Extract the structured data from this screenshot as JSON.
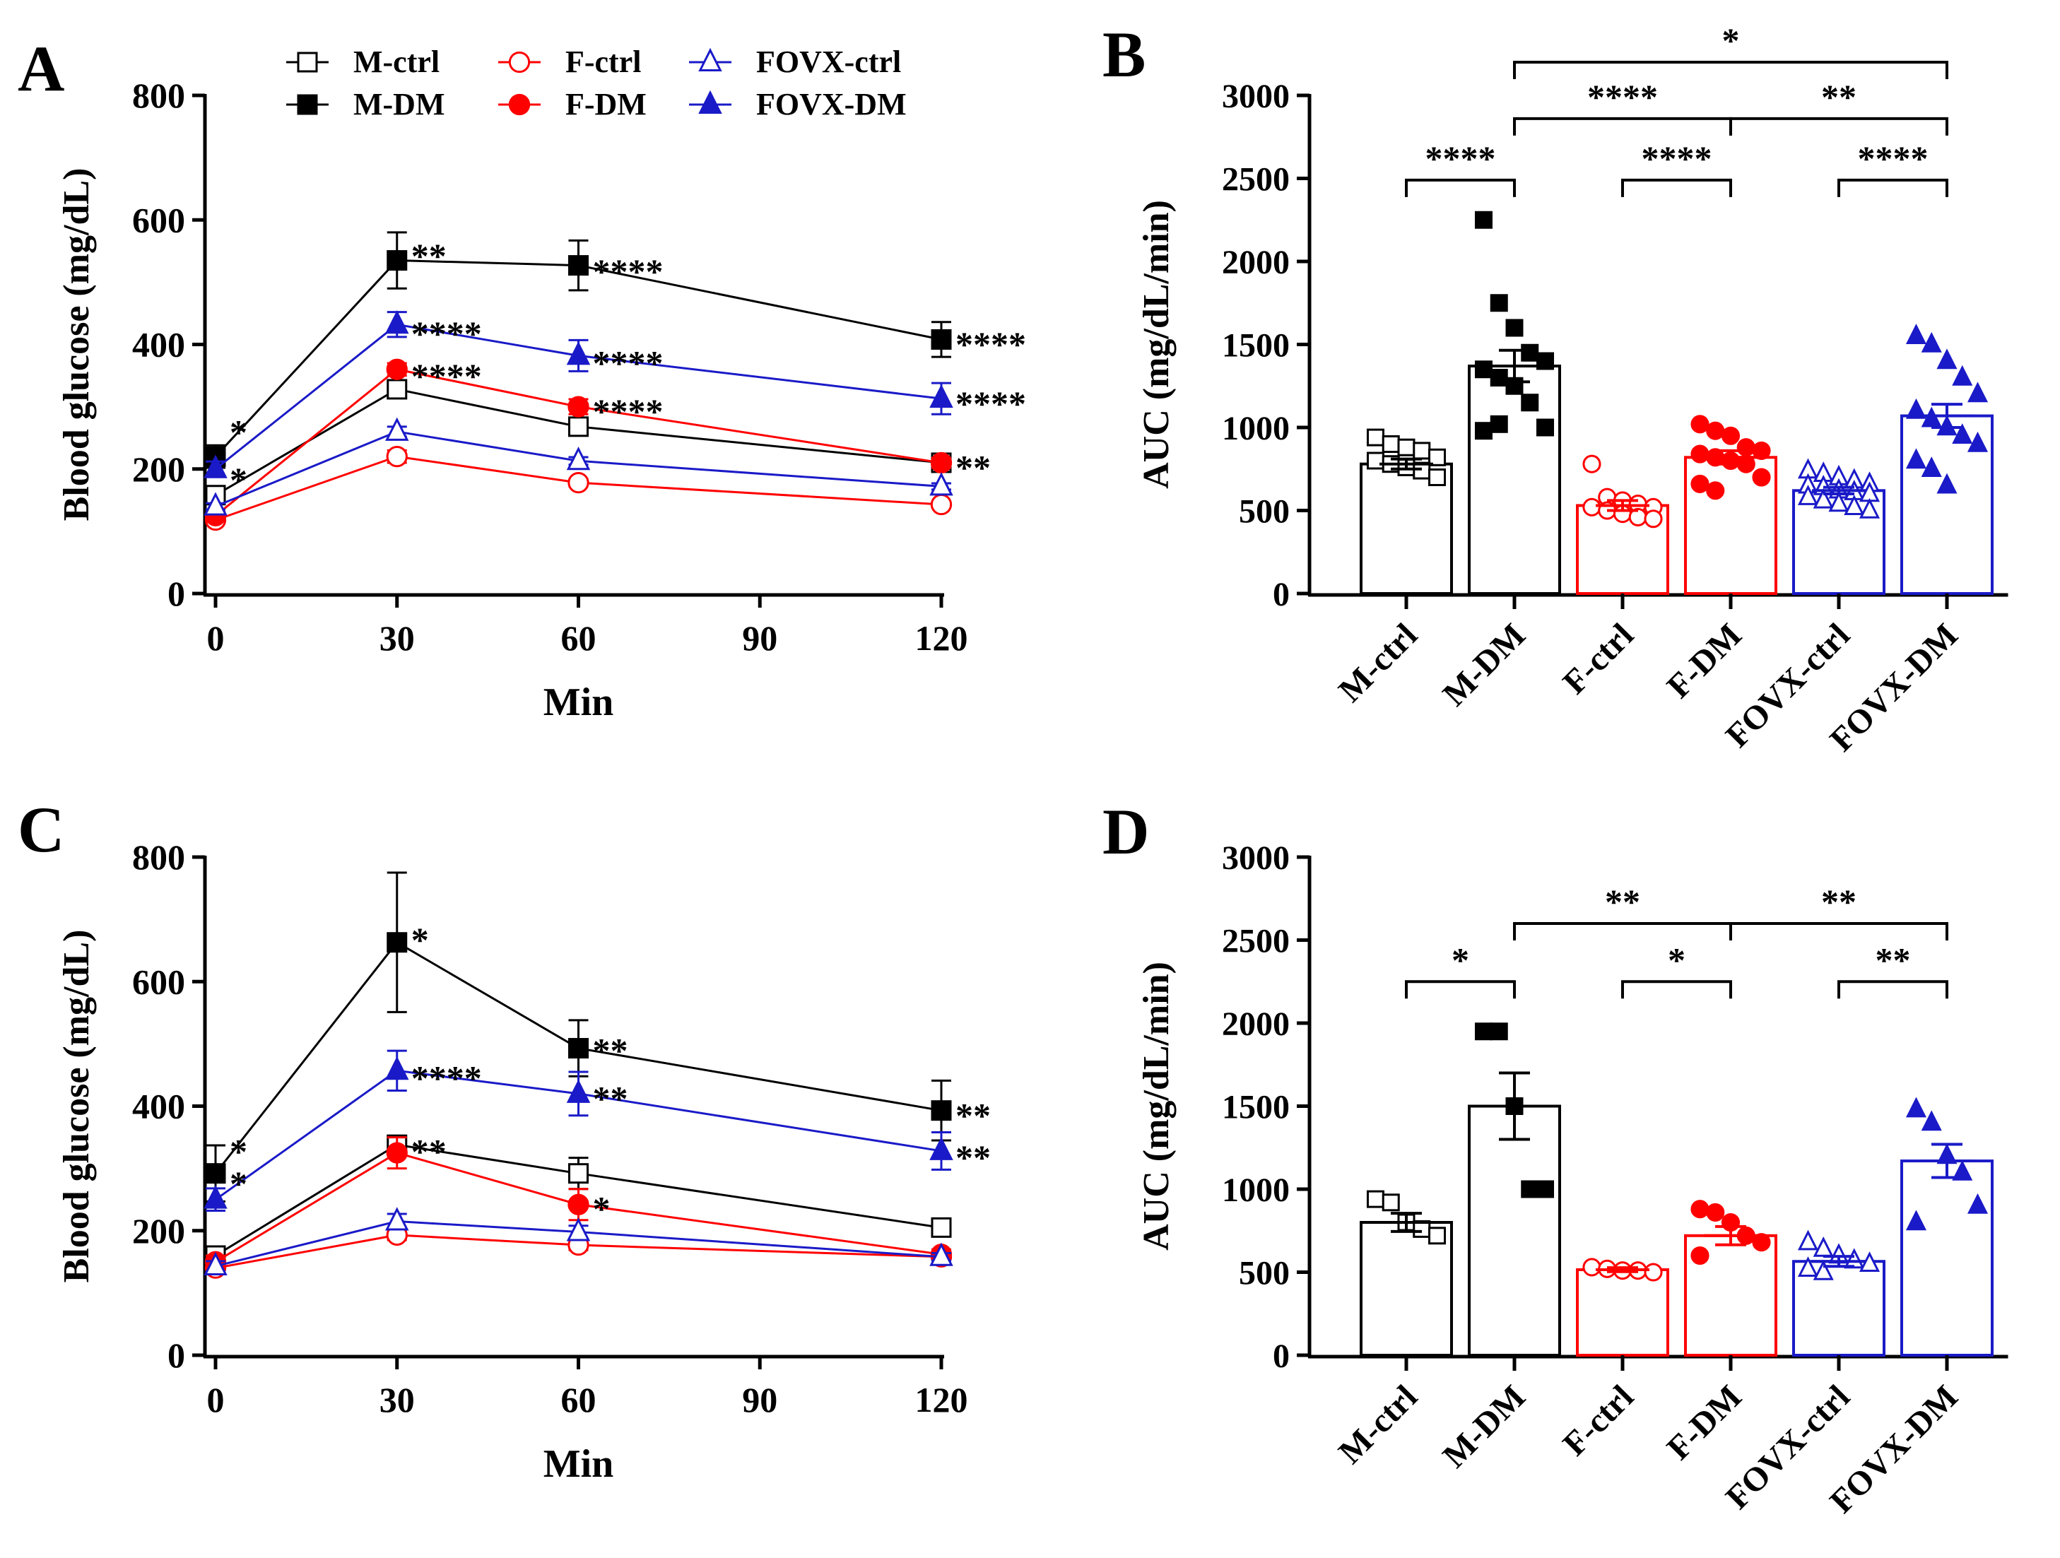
{
  "colors": {
    "M": "#000000",
    "F": "#ff0000",
    "FOVX": "#1a1ac8"
  },
  "legend": [
    {
      "label": "M-ctrl",
      "color": "#000000",
      "marker": "square",
      "filled": false
    },
    {
      "label": "M-DM",
      "color": "#000000",
      "marker": "square",
      "filled": true
    },
    {
      "label": "F-ctrl",
      "color": "#ff0000",
      "marker": "circle",
      "filled": false
    },
    {
      "label": "F-DM",
      "color": "#ff0000",
      "marker": "circle",
      "filled": true
    },
    {
      "label": "FOVX-ctrl",
      "color": "#1a1ac8",
      "marker": "triangle",
      "filled": false
    },
    {
      "label": "FOVX-DM",
      "color": "#1a1ac8",
      "marker": "triangle",
      "filled": true
    }
  ],
  "chart_data": [
    {
      "panel": "A",
      "type": "line",
      "xlabel": "Min",
      "ylabel": "Blood glucose (mg/dL)",
      "x": [
        0,
        30,
        60,
        120
      ],
      "xticks": [
        0,
        30,
        60,
        90,
        120
      ],
      "xlim": [
        0,
        120
      ],
      "ylim": [
        0,
        800
      ],
      "yticks": [
        0,
        200,
        400,
        600,
        800
      ],
      "series": [
        {
          "name": "M-ctrl",
          "color": "#000000",
          "marker": "square",
          "filled": false,
          "values": [
            158,
            328,
            268,
            210
          ],
          "errors": [
            8,
            12,
            10,
            8
          ]
        },
        {
          "name": "M-DM",
          "color": "#000000",
          "marker": "square",
          "filled": true,
          "values": [
            220,
            535,
            527,
            408
          ],
          "errors": [
            18,
            45,
            40,
            28
          ]
        },
        {
          "name": "F-ctrl",
          "color": "#ff0000",
          "marker": "circle",
          "filled": false,
          "values": [
            118,
            220,
            178,
            143
          ],
          "errors": [
            5,
            10,
            6,
            5
          ]
        },
        {
          "name": "F-DM",
          "color": "#ff0000",
          "marker": "circle",
          "filled": true,
          "values": [
            125,
            360,
            300,
            210
          ],
          "errors": [
            6,
            10,
            12,
            8
          ]
        },
        {
          "name": "FOVX-ctrl",
          "color": "#1a1ac8",
          "marker": "triangle",
          "filled": false,
          "values": [
            140,
            260,
            213,
            172
          ],
          "errors": [
            5,
            8,
            6,
            5
          ]
        },
        {
          "name": "FOVX-DM",
          "color": "#1a1ac8",
          "marker": "triangle",
          "filled": true,
          "values": [
            200,
            432,
            382,
            313
          ],
          "errors": [
            12,
            20,
            25,
            25
          ]
        }
      ],
      "annotations": [
        {
          "text": "*",
          "x": 0,
          "y": 272
        },
        {
          "text": "*",
          "x": 0,
          "y": 195
        },
        {
          "text": "**",
          "x": 30,
          "y": 555
        },
        {
          "text": "****",
          "x": 30,
          "y": 430
        },
        {
          "text": "****",
          "x": 30,
          "y": 362
        },
        {
          "text": "****",
          "x": 60,
          "y": 530
        },
        {
          "text": "****",
          "x": 60,
          "y": 383
        },
        {
          "text": "****",
          "x": 60,
          "y": 305
        },
        {
          "text": "****",
          "x": 120,
          "y": 413
        },
        {
          "text": "****",
          "x": 120,
          "y": 318
        },
        {
          "text": "**",
          "x": 120,
          "y": 215
        }
      ]
    },
    {
      "panel": "B",
      "type": "bar",
      "ylabel": "AUC (mg/dL/min)",
      "categories": [
        "M-ctrl",
        "M-DM",
        "F-ctrl",
        "F-DM",
        "FOVX-ctrl",
        "FOVX-DM"
      ],
      "colors": [
        "#000000",
        "#000000",
        "#ff0000",
        "#ff0000",
        "#1a1ac8",
        "#1a1ac8"
      ],
      "markers": [
        "square",
        "square",
        "circle",
        "circle",
        "triangle",
        "triangle"
      ],
      "filled": [
        false,
        true,
        false,
        true,
        false,
        true
      ],
      "values": [
        780,
        1370,
        530,
        820,
        620,
        1070
      ],
      "errors": [
        30,
        95,
        30,
        40,
        20,
        70
      ],
      "points": [
        [
          940,
          900,
          880,
          860,
          820,
          800,
          780,
          760,
          740,
          700
        ],
        [
          2250,
          1750,
          1600,
          1450,
          1400,
          1350,
          1300,
          1250,
          1150,
          1000,
          980,
          1020
        ],
        [
          780,
          580,
          560,
          540,
          520,
          520,
          500,
          480,
          460,
          450
        ],
        [
          1020,
          980,
          950,
          880,
          860,
          840,
          820,
          800,
          780,
          700,
          660,
          620
        ],
        [
          740,
          720,
          700,
          680,
          660,
          650,
          640,
          620,
          610,
          600,
          580,
          560,
          540,
          520,
          500
        ],
        [
          1550,
          1500,
          1400,
          1300,
          1200,
          1100,
          1050,
          1000,
          950,
          900,
          800,
          750,
          650
        ]
      ],
      "ylim": [
        0,
        3000
      ],
      "yticks": [
        0,
        500,
        1000,
        1500,
        2000,
        2500,
        3000
      ],
      "brackets": [
        {
          "from": 0,
          "to": 1,
          "y": 2490,
          "label": "****"
        },
        {
          "from": 2,
          "to": 3,
          "y": 2490,
          "label": "****"
        },
        {
          "from": 4,
          "to": 5,
          "y": 2490,
          "label": "****"
        },
        {
          "from": 1,
          "to": 3,
          "y": 2860,
          "label": "****"
        },
        {
          "from": 3,
          "to": 5,
          "y": 2860,
          "label": "**"
        },
        {
          "from": 1,
          "to": 5,
          "y": 3200,
          "label": "*"
        }
      ]
    },
    {
      "panel": "C",
      "type": "line",
      "xlabel": "Min",
      "ylabel": "Blood glucose (mg/dL)",
      "x": [
        0,
        30,
        60,
        120
      ],
      "xticks": [
        0,
        30,
        60,
        90,
        120
      ],
      "xlim": [
        0,
        120
      ],
      "ylim": [
        0,
        800
      ],
      "yticks": [
        0,
        200,
        400,
        600,
        800
      ],
      "series": [
        {
          "name": "M-ctrl",
          "color": "#000000",
          "marker": "square",
          "filled": false,
          "values": [
            160,
            338,
            292,
            205
          ],
          "errors": [
            8,
            12,
            25,
            8
          ]
        },
        {
          "name": "M-DM",
          "color": "#000000",
          "marker": "square",
          "filled": true,
          "values": [
            292,
            663,
            493,
            393
          ],
          "errors": [
            45,
            112,
            45,
            48
          ]
        },
        {
          "name": "F-ctrl",
          "color": "#ff0000",
          "marker": "circle",
          "filled": false,
          "values": [
            140,
            193,
            177,
            158
          ],
          "errors": [
            5,
            8,
            8,
            5
          ]
        },
        {
          "name": "F-DM",
          "color": "#ff0000",
          "marker": "circle",
          "filled": true,
          "values": [
            150,
            325,
            242,
            162
          ],
          "errors": [
            10,
            25,
            25,
            8
          ]
        },
        {
          "name": "FOVX-ctrl",
          "color": "#1a1ac8",
          "marker": "triangle",
          "filled": false,
          "values": [
            143,
            215,
            198,
            158
          ],
          "errors": [
            8,
            12,
            10,
            6
          ]
        },
        {
          "name": "FOVX-DM",
          "color": "#1a1ac8",
          "marker": "triangle",
          "filled": true,
          "values": [
            250,
            457,
            420,
            328
          ],
          "errors": [
            18,
            32,
            35,
            30
          ]
        }
      ],
      "annotations": [
        {
          "text": "*",
          "x": 0,
          "y": 340
        },
        {
          "text": "*",
          "x": 0,
          "y": 288
        },
        {
          "text": "*",
          "x": 30,
          "y": 680
        },
        {
          "text": "****",
          "x": 30,
          "y": 458
        },
        {
          "text": "**",
          "x": 30,
          "y": 340
        },
        {
          "text": "**",
          "x": 60,
          "y": 502
        },
        {
          "text": "**",
          "x": 60,
          "y": 425
        },
        {
          "text": "*",
          "x": 60,
          "y": 248
        },
        {
          "text": "**",
          "x": 120,
          "y": 398
        },
        {
          "text": "**",
          "x": 120,
          "y": 330
        }
      ]
    },
    {
      "panel": "D",
      "type": "bar",
      "ylabel": "AUC (mg/dL/min)",
      "categories": [
        "M-ctrl",
        "M-DM",
        "F-ctrl",
        "F-DM",
        "FOVX-ctrl",
        "FOVX-DM"
      ],
      "colors": [
        "#000000",
        "#000000",
        "#ff0000",
        "#ff0000",
        "#1a1ac8",
        "#1a1ac8"
      ],
      "markers": [
        "square",
        "square",
        "circle",
        "circle",
        "triangle",
        "triangle"
      ],
      "filled": [
        false,
        true,
        false,
        true,
        false,
        true
      ],
      "values": [
        800,
        1500,
        515,
        720,
        565,
        1170
      ],
      "errors": [
        55,
        200,
        12,
        55,
        30,
        100
      ],
      "points": [
        [
          940,
          920,
          800,
          760,
          720
        ],
        [
          1950,
          1950,
          1500,
          1000,
          1000
        ],
        [
          530,
          520,
          510,
          510,
          500
        ],
        [
          880,
          860,
          800,
          720,
          680,
          600
        ],
        [
          680,
          640,
          600,
          570,
          550,
          520,
          500
        ],
        [
          1480,
          1400,
          1200,
          1100,
          900,
          800
        ]
      ],
      "ylim": [
        0,
        3000
      ],
      "yticks": [
        0,
        500,
        1000,
        1500,
        2000,
        2500,
        3000
      ],
      "brackets": [
        {
          "from": 0,
          "to": 1,
          "y": 2250,
          "label": "*"
        },
        {
          "from": 2,
          "to": 3,
          "y": 2250,
          "label": "*"
        },
        {
          "from": 4,
          "to": 5,
          "y": 2250,
          "label": "**"
        },
        {
          "from": 1,
          "to": 3,
          "y": 2600,
          "label": "**"
        },
        {
          "from": 3,
          "to": 5,
          "y": 2600,
          "label": "**"
        }
      ]
    }
  ]
}
